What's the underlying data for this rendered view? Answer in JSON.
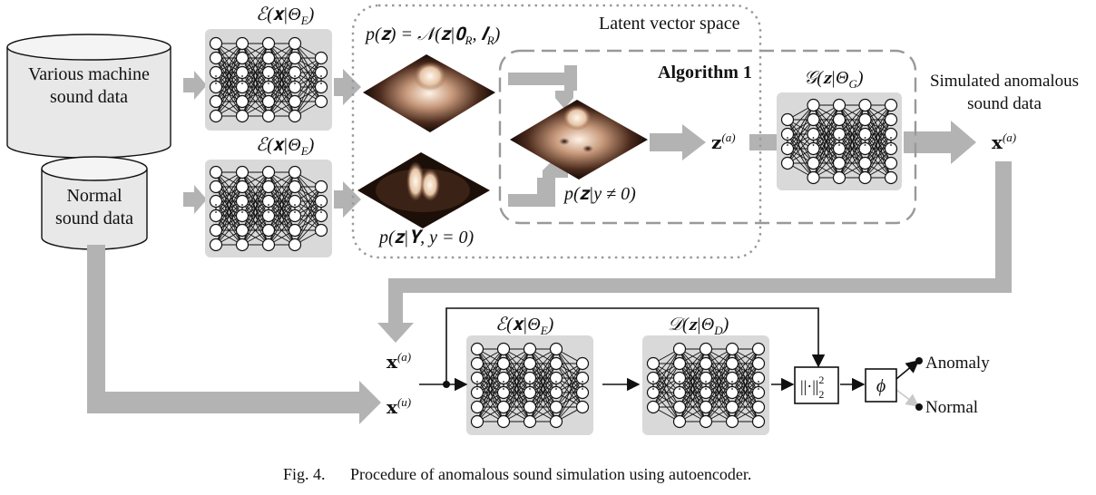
{
  "inputs": {
    "various": [
      "Various machine",
      "sound data"
    ],
    "normal": [
      "Normal",
      "sound data"
    ]
  },
  "encoder_label": "ℰ(𝐱|Θ",
  "encoder_sub": "E",
  "generator_label": "𝒢(𝐳|Θ",
  "generator_sub": "G",
  "decoder_label": "𝒟(𝐳|Θ",
  "decoder_sub": "D",
  "latent": {
    "title": "Latent vector space",
    "prior": "p(𝐳) = 𝒩(𝐳|𝟎",
    "prior_sub1": "R",
    "prior_mid": ", 𝑰",
    "prior_sub2": "R",
    "normal_posterior": "p(𝐳|𝚼, y = 0)",
    "anomalous": "p(𝐳|y ≠ 0)"
  },
  "algorithm": "Algorithm 1",
  "z_anom": "𝐳",
  "sup_a": "(a)",
  "sup_u": "(u)",
  "x_bold": "𝐱",
  "simulated": [
    "Simulated anomalous",
    "sound data"
  ],
  "norm_op": "||·||",
  "norm_sup": "2",
  "norm_sub": "2",
  "phi": "ϕ",
  "outputs": {
    "anomaly": "Anomaly",
    "normal": "Normal"
  },
  "caption": {
    "label": "Fig. 4.",
    "text": "Procedure of anomalous sound simulation using autoencoder."
  },
  "colors": {
    "arrow": "#b3b3b3",
    "box": "#d9d9d9",
    "cylinder": "#e8e8e8",
    "dash": "#999999"
  }
}
